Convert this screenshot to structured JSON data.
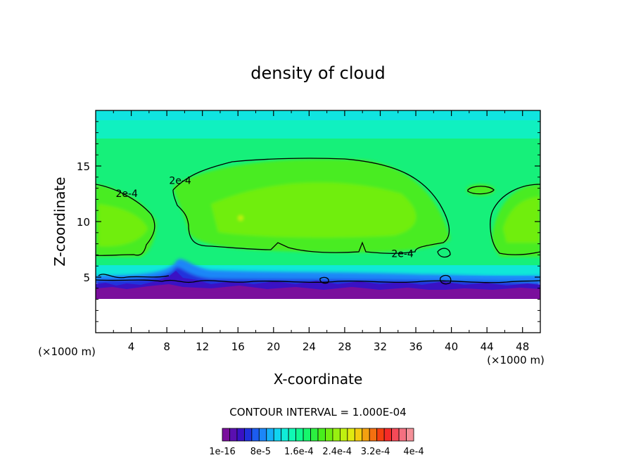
{
  "chart_data": {
    "type": "heatmap",
    "title": "density of cloud",
    "xlabel": "X-coordinate",
    "ylabel": "Z-coordinate",
    "x_unit": "(×1000 m)",
    "z_unit": "(×1000 m)",
    "xlim": [
      0,
      50
    ],
    "ylim": [
      0,
      20
    ],
    "x_ticks": [
      4,
      8,
      12,
      16,
      20,
      24,
      28,
      32,
      36,
      40,
      44,
      48
    ],
    "y_ticks": [
      5,
      10,
      15
    ],
    "contour_interval_text": "CONTOUR INTERVAL = 1.000E-04",
    "contour_level": "2e-4",
    "contour_labels": [
      {
        "text": "2e-4",
        "x": 3.5,
        "z": 12.2
      },
      {
        "text": "2e-4",
        "x": 9.5,
        "z": 13.4
      },
      {
        "text": "2e-4",
        "x": 34.5,
        "z": 6.8
      }
    ],
    "colorbar": {
      "colors": [
        "#7a0f9c",
        "#5a0fb0",
        "#3a12c4",
        "#2030dc",
        "#1c5cf0",
        "#1c86f8",
        "#16b0f8",
        "#10d4f0",
        "#10ecd8",
        "#10f8b4",
        "#10f890",
        "#16f66c",
        "#2cf040",
        "#48ee1c",
        "#70ee10",
        "#98f010",
        "#c0f010",
        "#e0ea10",
        "#f4cc10",
        "#f4a010",
        "#f47010",
        "#f44010",
        "#f42a28",
        "#f44a58",
        "#f47080",
        "#f49098"
      ],
      "tick_labels": [
        "1e-16",
        "8e-5",
        "1.6e-4",
        "2.4e-4",
        "3.2e-4",
        "4e-4"
      ]
    }
  }
}
